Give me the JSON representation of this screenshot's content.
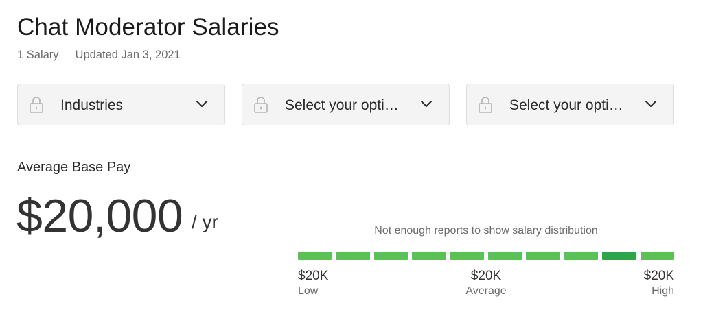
{
  "header": {
    "title": "Chat Moderator Salaries",
    "salary_count": "1 Salary",
    "updated": "Updated Jan 3, 2021"
  },
  "filters": [
    {
      "label": "Industries",
      "icon": "lock-icon",
      "chevron": "chevron-down-icon"
    },
    {
      "label": "Select your opti…",
      "icon": "lock-icon",
      "chevron": "chevron-down-icon"
    },
    {
      "label": "Select your opti…",
      "icon": "lock-icon",
      "chevron": "chevron-down-icon"
    }
  ],
  "pay": {
    "label": "Average Base Pay",
    "amount": "$20,000",
    "unit": "/ yr"
  },
  "distribution": {
    "note": "Not enough reports to show salary distribution",
    "segments": 10,
    "highlighted_segment": 9,
    "low": {
      "amount": "$20K",
      "caption": "Low"
    },
    "average": {
      "amount": "$20K",
      "caption": "Average"
    },
    "high": {
      "amount": "$20K",
      "caption": "High"
    },
    "colors": {
      "segment": "#5bc157",
      "highlight": "#2ea44b"
    }
  }
}
